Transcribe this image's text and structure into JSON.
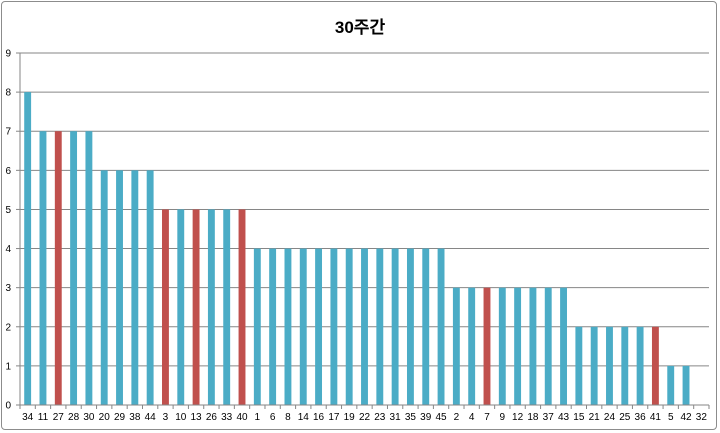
{
  "chart_data": {
    "type": "bar",
    "title": "30주간",
    "xlabel": "",
    "ylabel": "",
    "ylim": [
      0,
      9
    ],
    "yticks": [
      0,
      1,
      2,
      3,
      4,
      5,
      6,
      7,
      8,
      9
    ],
    "grid": true,
    "legend": "none",
    "categories": [
      "34",
      "11",
      "27",
      "28",
      "30",
      "20",
      "29",
      "38",
      "44",
      "3",
      "10",
      "13",
      "26",
      "33",
      "40",
      "1",
      "6",
      "8",
      "14",
      "16",
      "17",
      "19",
      "22",
      "23",
      "31",
      "35",
      "39",
      "45",
      "2",
      "4",
      "7",
      "9",
      "12",
      "18",
      "37",
      "43",
      "15",
      "21",
      "24",
      "25",
      "36",
      "41",
      "5",
      "42",
      "32"
    ],
    "values": [
      8,
      7,
      7,
      7,
      7,
      6,
      6,
      6,
      6,
      5,
      5,
      5,
      5,
      5,
      5,
      4,
      4,
      4,
      4,
      4,
      4,
      4,
      4,
      4,
      4,
      4,
      4,
      4,
      3,
      3,
      3,
      3,
      3,
      3,
      3,
      3,
      2,
      2,
      2,
      2,
      2,
      2,
      1,
      1,
      0
    ],
    "highlighted": [
      "27",
      "3",
      "13",
      "40",
      "7",
      "41"
    ],
    "colors": {
      "normal": "#4bacc6",
      "highlight": "#c0504d",
      "grid": "#868686",
      "axis": "#868686"
    }
  }
}
